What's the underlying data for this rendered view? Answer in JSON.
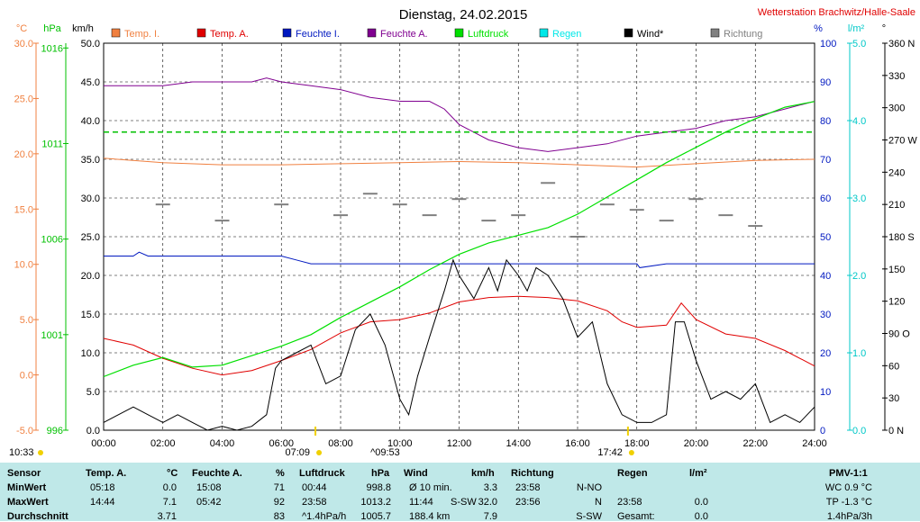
{
  "title": "Dienstag, 24.02.2015",
  "station": "Wetterstation Brachwitz/Halle-Saale",
  "axis_units": {
    "temp": "°C",
    "press": "hPa",
    "wind": "km/h",
    "hum": "%",
    "rain": "l/m²",
    "dir": "°"
  },
  "legend": [
    {
      "label": "Temp. I.",
      "color": "#f08040"
    },
    {
      "label": "Temp. A.",
      "color": "#e00000"
    },
    {
      "label": "Feuchte I.",
      "color": "#0018c0"
    },
    {
      "label": "Feuchte A.",
      "color": "#800090"
    },
    {
      "label": "Luftdruck",
      "color": "#00e000"
    },
    {
      "label": "Regen",
      "color": "#00e8e8"
    },
    {
      "label": "Wind*",
      "color": "#000000"
    },
    {
      "label": "Richtung",
      "color": "#808080"
    }
  ],
  "chart_data": {
    "type": "line",
    "x_ticks": [
      "00:00",
      "02:00",
      "04:00",
      "06:00",
      "08:00",
      "10:00",
      "12:00",
      "14:00",
      "16:00",
      "18:00",
      "20:00",
      "22:00",
      "24:00"
    ],
    "axes": {
      "temp_ticks": [
        "30.0",
        "25.0",
        "20.0",
        "15.0",
        "10.0",
        "5.0",
        "0.0",
        "-5.0"
      ],
      "press_ticks": [
        "1016",
        "1011",
        "1006",
        "1001",
        "996"
      ],
      "wind_ticks": [
        "50.0",
        "45.0",
        "40.0",
        "35.0",
        "30.0",
        "25.0",
        "20.0",
        "15.0",
        "10.0",
        "5.0",
        "0.0"
      ],
      "hum_ticks": [
        "100",
        "90",
        "80",
        "70",
        "60",
        "50",
        "40",
        "30",
        "20",
        "10",
        "0"
      ],
      "rain_ticks": [
        "5.0",
        "4.0",
        "3.0",
        "2.0",
        "1.0",
        "0.0"
      ],
      "dir_ticks": [
        "360 N",
        "330",
        "300",
        "270 W",
        "240",
        "210",
        "180 S",
        "150",
        "120",
        "90 O",
        "60",
        "30",
        "0 N"
      ]
    },
    "series": [
      {
        "name": "Temp. I.",
        "axis": "temp",
        "x": [
          0,
          2,
          4,
          6,
          8,
          10,
          12,
          14,
          16,
          18,
          20,
          22,
          24
        ],
        "values": [
          19.6,
          19.2,
          19.0,
          19.0,
          19.1,
          19.2,
          19.3,
          19.2,
          19.0,
          18.8,
          19.1,
          19.4,
          19.5
        ]
      },
      {
        "name": "Temp. A.",
        "axis": "temp",
        "x": [
          0,
          1,
          2,
          3,
          4,
          5,
          6,
          7,
          8,
          9,
          10,
          11,
          12,
          13,
          14,
          15,
          16,
          17,
          17.5,
          18,
          19,
          19.5,
          20,
          21,
          22,
          23,
          24
        ],
        "values": [
          3.3,
          2.7,
          1.5,
          0.6,
          0.0,
          0.4,
          1.3,
          2.3,
          3.8,
          4.8,
          5.0,
          5.6,
          6.6,
          7.0,
          7.1,
          7.0,
          6.7,
          5.8,
          4.8,
          4.3,
          4.5,
          6.5,
          5.0,
          3.7,
          3.3,
          2.2,
          0.8
        ]
      },
      {
        "name": "Feuchte I.",
        "axis": "hum",
        "x": [
          0,
          1,
          1.2,
          1.5,
          2,
          4,
          6,
          6.5,
          7,
          8,
          10,
          12,
          14,
          16,
          18,
          18.1,
          19,
          20,
          22,
          24
        ],
        "values": [
          45,
          45,
          46,
          45,
          45,
          45,
          45,
          44,
          43,
          43,
          43,
          43,
          43,
          43,
          43,
          42,
          43,
          43,
          43,
          43
        ]
      },
      {
        "name": "Feuchte A.",
        "axis": "hum",
        "x": [
          0,
          1,
          2,
          3,
          4,
          5,
          5.5,
          6,
          7,
          8,
          9,
          10,
          11,
          11.5,
          12,
          12.5,
          13,
          14,
          15,
          16,
          17,
          18,
          19,
          20,
          21,
          22,
          23,
          24
        ],
        "values": [
          89,
          89,
          89,
          90,
          90,
          90,
          91,
          90,
          89,
          88,
          86,
          85,
          85,
          83,
          79,
          77,
          75,
          73,
          72,
          73,
          74,
          76,
          77,
          78,
          80,
          81,
          83,
          85
        ]
      },
      {
        "name": "Luftdruck",
        "axis": "press",
        "x": [
          0,
          1,
          2,
          3,
          4,
          5,
          6,
          7,
          8,
          9,
          10,
          11,
          12,
          13,
          14,
          15,
          16,
          17,
          18,
          19,
          20,
          21,
          22,
          23,
          24
        ],
        "values": [
          998.8,
          999.4,
          999.8,
          999.3,
          999.4,
          999.9,
          1000.4,
          1001.0,
          1001.9,
          1002.7,
          1003.5,
          1004.4,
          1005.2,
          1005.8,
          1006.2,
          1006.6,
          1007.3,
          1008.2,
          1009.1,
          1010.0,
          1010.8,
          1011.6,
          1012.3,
          1012.9,
          1013.2
        ]
      },
      {
        "name": "Wind*",
        "axis": "wind",
        "x": [
          0,
          0.5,
          1,
          1.5,
          2,
          2.5,
          3,
          3.5,
          4,
          4.5,
          5,
          5.5,
          5.8,
          6,
          6.5,
          7,
          7.5,
          8,
          8.5,
          9,
          9.5,
          10,
          10.3,
          10.6,
          11,
          11.5,
          11.8,
          12,
          12.5,
          13,
          13.3,
          13.6,
          14,
          14.3,
          14.6,
          15,
          15.5,
          16,
          16.5,
          17,
          17.5,
          18,
          18.5,
          19,
          19.3,
          19.6,
          20,
          20.5,
          21,
          21.5,
          22,
          22.5,
          23,
          23.5,
          24
        ],
        "values": [
          1,
          2,
          3,
          2,
          1,
          2,
          1,
          0,
          0.5,
          0,
          0.5,
          2,
          8,
          9,
          10,
          11,
          6,
          7,
          13,
          15,
          11,
          4,
          2,
          7,
          12,
          18,
          22,
          20,
          17,
          21,
          18,
          22,
          20,
          18,
          21,
          20,
          17,
          12,
          14,
          6,
          2,
          1,
          1,
          2,
          14,
          14,
          9,
          4,
          5,
          4,
          6,
          1,
          2,
          1,
          3
        ]
      },
      {
        "name": "Richtung",
        "axis": "dir",
        "x": [
          2,
          4,
          6,
          8,
          9,
          10,
          11,
          12,
          13,
          14,
          15,
          16,
          17,
          18,
          19,
          20,
          21,
          22
        ],
        "values": [
          210,
          195,
          210,
          200,
          220,
          210,
          200,
          215,
          195,
          200,
          230,
          180,
          210,
          205,
          195,
          215,
          200,
          190
        ]
      }
    ],
    "markers": [
      {
        "label": "10:33",
        "pos": "left"
      },
      {
        "label": "07:09",
        "pos": "sunrise"
      },
      {
        "label": "^09:53",
        "pos": "max"
      },
      {
        "label": "17:42",
        "pos": "sunset"
      }
    ]
  },
  "stats": {
    "headers": {
      "sensor": "Sensor",
      "temp": "Temp. A.",
      "temp_unit": "°C",
      "hum": "Feuchte A.",
      "hum_unit": "%",
      "press": "Luftdruck",
      "press_unit": "hPa",
      "wind": "Wind",
      "wind_unit": "km/h",
      "dir": "Richtung",
      "rain": "Regen",
      "rain_unit": "l/m²",
      "pmv": "PMV-1:1"
    },
    "rows": [
      {
        "label": "MinWert",
        "temp_t": "05:18",
        "temp_v": "0.0",
        "hum_t": "15:08",
        "hum_v": "71",
        "press_t": "00:44",
        "press_v": "998.8",
        "wind_t": "Ø 10 min.",
        "wind_v": "3.3",
        "dir_t": "23:58",
        "dir_v": "N-NO",
        "rain_t": "",
        "rain_v": "",
        "pmv": "WC 0.9 °C"
      },
      {
        "label": "MaxWert",
        "temp_t": "14:44",
        "temp_v": "7.1",
        "hum_t": "05:42",
        "hum_v": "92",
        "press_t": "23:58",
        "press_v": "1013.2",
        "wind_t": "11:44",
        "wind_m": "S-SW",
        "wind_v": "32.0",
        "dir_t": "23:56",
        "dir_v": "N",
        "rain_t": "23:58",
        "rain_v": "0.0",
        "pmv": "TP -1.3 °C"
      },
      {
        "label": "Durchschnitt",
        "temp_t": "",
        "temp_v": "3.71",
        "hum_t": "",
        "hum_v": "83",
        "press_t": "^1.4hPa/h",
        "press_v": "1005.7",
        "wind_t": "188.4 km",
        "wind_v": "7.9",
        "dir_t": "",
        "dir_v": "S-SW",
        "rain_t": "Gesamt:",
        "rain_v": "0.0",
        "pmv": "1.4hPa/3h"
      }
    ]
  }
}
